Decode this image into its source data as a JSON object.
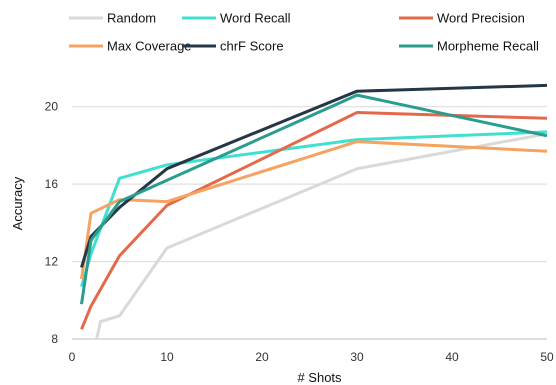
{
  "chart_data": {
    "type": "line",
    "title": "",
    "xlabel": "# Shots",
    "ylabel": "Accuracy",
    "xlim": [
      0,
      50
    ],
    "ylim": [
      8,
      22
    ],
    "xticks": [
      0,
      10,
      20,
      30,
      40,
      50
    ],
    "yticks": [
      8,
      12,
      16,
      20
    ],
    "grid": "horizontal",
    "legend_position": "top",
    "series": [
      {
        "name": "Random",
        "color": "#d9d9d9",
        "points": [
          [
            2.5,
            7.8
          ],
          [
            3,
            8.9
          ],
          [
            5,
            9.2
          ],
          [
            10,
            12.7
          ],
          [
            30,
            16.8
          ],
          [
            50,
            18.6
          ]
        ]
      },
      {
        "name": "Word Recall",
        "color": "#40e0d0",
        "points": [
          [
            1,
            10.7
          ],
          [
            2,
            12.4
          ],
          [
            5,
            16.3
          ],
          [
            10,
            17.0
          ],
          [
            30,
            18.3
          ],
          [
            50,
            18.7
          ]
        ]
      },
      {
        "name": "Word Precision",
        "color": "#e4694a",
        "points": [
          [
            1,
            8.5
          ],
          [
            2,
            9.7
          ],
          [
            5,
            12.3
          ],
          [
            10,
            14.9
          ],
          [
            30,
            19.7
          ],
          [
            50,
            19.4
          ]
        ]
      },
      {
        "name": "Max Coverage",
        "color": "#f4a460",
        "points": [
          [
            1,
            11.1
          ],
          [
            2,
            14.5
          ],
          [
            5,
            15.2
          ],
          [
            10,
            15.1
          ],
          [
            30,
            18.2
          ],
          [
            50,
            17.7
          ]
        ]
      },
      {
        "name": "chrF Score",
        "color": "#253746",
        "points": [
          [
            1,
            11.7
          ],
          [
            2,
            13.3
          ],
          [
            5,
            14.8
          ],
          [
            10,
            16.8
          ],
          [
            30,
            20.8
          ],
          [
            50,
            21.1
          ]
        ]
      },
      {
        "name": "Morpheme Recall",
        "color": "#2a9d8f",
        "points": [
          [
            1,
            9.8
          ],
          [
            2,
            13.1
          ],
          [
            5,
            15.1
          ],
          [
            10,
            16.2
          ],
          [
            30,
            20.6
          ],
          [
            50,
            18.5
          ]
        ]
      }
    ]
  }
}
